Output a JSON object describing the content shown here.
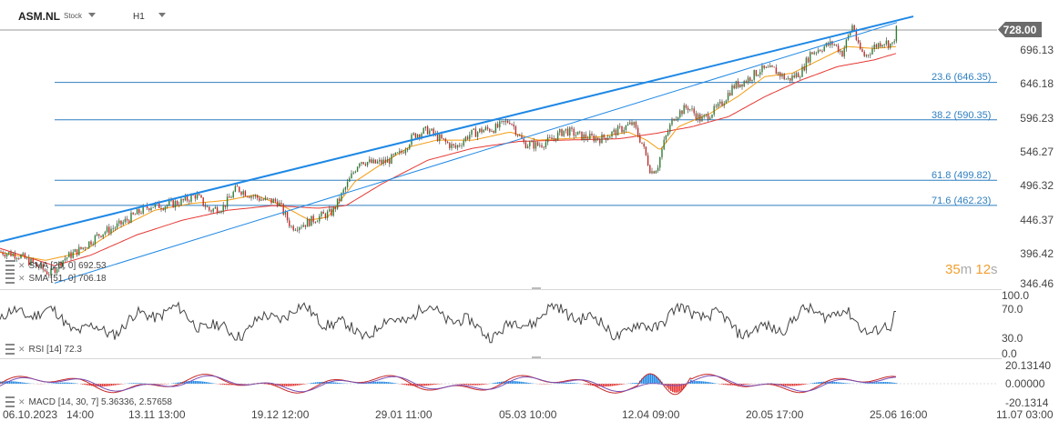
{
  "header": {
    "symbol": "ASM.NL",
    "symbol_type": "Stock",
    "timeframe": "H1"
  },
  "price_axis": [
    "696.13",
    "646.18",
    "596.23",
    "546.27",
    "496.32",
    "446.37",
    "396.42",
    "346.46"
  ],
  "current_price": "728.00",
  "fib_levels": [
    "23.6 (646.35)",
    "38.2 (590.35)",
    "61.8 (499.82)",
    "71.6 (462.23)"
  ],
  "indicators": {
    "sma1": "SMA [20, 0] 692.53",
    "sma2": "SMA [51, 0] 706.18",
    "rsi": "RSI [14] 72.3",
    "macd": "MACD [14, 30, 7] 5.36336, 2.57658"
  },
  "rsi_axis": [
    "100.0",
    "70.0",
    "30.0",
    "0.0"
  ],
  "macd_axis": [
    "20.13140",
    "0.00000",
    "-20.1314"
  ],
  "x_axis": [
    "06.10.2023",
    "14:00",
    "13.11 13:00",
    "19.12 12:00",
    "29.01 11:00",
    "05.03 10:00",
    "12.04 09:00",
    "20.05 17:00",
    "25.06 16:00",
    "11.07 03:00"
  ],
  "countdown": {
    "minutes": "35",
    "m": "m",
    "seconds": "12",
    "s": "s"
  },
  "colors": {
    "fib": "#2f7fc1",
    "trend": "#1e88e5",
    "sma_fast": "#f39c12",
    "sma_slow": "#e53935",
    "price": "#222222",
    "macd_pos": "#1e88e5",
    "macd_neg": "#e53935"
  },
  "chart_data": {
    "type": "line",
    "title": "ASM.NL H1",
    "ylim": [
      346.46,
      746
    ],
    "close_anchors": [
      [
        0,
        393
      ],
      [
        20,
        388
      ],
      [
        40,
        372
      ],
      [
        55,
        360
      ],
      [
        70,
        382
      ],
      [
        90,
        398
      ],
      [
        110,
        420
      ],
      [
        130,
        432
      ],
      [
        150,
        450
      ],
      [
        165,
        462
      ],
      [
        180,
        462
      ],
      [
        200,
        468
      ],
      [
        215,
        478
      ],
      [
        230,
        455
      ],
      [
        245,
        460
      ],
      [
        260,
        488
      ],
      [
        275,
        478
      ],
      [
        290,
        470
      ],
      [
        305,
        468
      ],
      [
        320,
        430
      ],
      [
        335,
        435
      ],
      [
        350,
        445
      ],
      [
        365,
        452
      ],
      [
        380,
        490
      ],
      [
        395,
        530
      ],
      [
        410,
        525
      ],
      [
        425,
        528
      ],
      [
        440,
        540
      ],
      [
        455,
        568
      ],
      [
        470,
        575
      ],
      [
        485,
        560
      ],
      [
        500,
        548
      ],
      [
        515,
        568
      ],
      [
        530,
        575
      ],
      [
        545,
        578
      ],
      [
        560,
        590
      ],
      [
        575,
        555
      ],
      [
        590,
        552
      ],
      [
        605,
        560
      ],
      [
        620,
        575
      ],
      [
        640,
        565
      ],
      [
        660,
        562
      ],
      [
        680,
        575
      ],
      [
        695,
        585
      ],
      [
        705,
        555
      ],
      [
        715,
        512
      ],
      [
        722,
        520
      ],
      [
        730,
        560
      ],
      [
        740,
        595
      ],
      [
        755,
        610
      ],
      [
        770,
        590
      ],
      [
        790,
        610
      ],
      [
        805,
        640
      ],
      [
        820,
        650
      ],
      [
        835,
        665
      ],
      [
        850,
        665
      ],
      [
        865,
        650
      ],
      [
        880,
        662
      ],
      [
        890,
        690
      ],
      [
        905,
        700
      ],
      [
        915,
        705
      ],
      [
        925,
        690
      ],
      [
        937,
        735
      ],
      [
        942,
        700
      ],
      [
        950,
        685
      ],
      [
        960,
        700
      ],
      [
        970,
        708
      ],
      [
        980,
        702
      ],
      [
        985,
        728
      ]
    ],
    "sma_fast_anchors": [
      [
        0,
        392
      ],
      [
        50,
        380
      ],
      [
        90,
        392
      ],
      [
        130,
        428
      ],
      [
        170,
        455
      ],
      [
        210,
        465
      ],
      [
        250,
        470
      ],
      [
        280,
        478
      ],
      [
        310,
        462
      ],
      [
        340,
        440
      ],
      [
        360,
        445
      ],
      [
        390,
        498
      ],
      [
        420,
        525
      ],
      [
        450,
        550
      ],
      [
        480,
        560
      ],
      [
        520,
        560
      ],
      [
        560,
        572
      ],
      [
        590,
        560
      ],
      [
        620,
        562
      ],
      [
        660,
        565
      ],
      [
        690,
        572
      ],
      [
        710,
        560
      ],
      [
        725,
        545
      ],
      [
        745,
        580
      ],
      [
        780,
        600
      ],
      [
        810,
        625
      ],
      [
        840,
        655
      ],
      [
        870,
        660
      ],
      [
        900,
        680
      ],
      [
        930,
        700
      ],
      [
        960,
        697
      ],
      [
        985,
        700
      ]
    ],
    "sma_slow_anchors": [
      [
        0,
        398
      ],
      [
        60,
        372
      ],
      [
        100,
        388
      ],
      [
        150,
        418
      ],
      [
        200,
        440
      ],
      [
        250,
        455
      ],
      [
        300,
        462
      ],
      [
        350,
        458
      ],
      [
        380,
        462
      ],
      [
        420,
        495
      ],
      [
        470,
        530
      ],
      [
        520,
        548
      ],
      [
        570,
        558
      ],
      [
        620,
        560
      ],
      [
        680,
        562
      ],
      [
        720,
        570
      ],
      [
        760,
        580
      ],
      [
        800,
        595
      ],
      [
        840,
        625
      ],
      [
        880,
        650
      ],
      [
        920,
        670
      ],
      [
        960,
        680
      ],
      [
        985,
        690
      ]
    ],
    "trend_lines": [
      {
        "from": [
          0,
          408
        ],
        "to": [
          1003,
          745
        ]
      },
      {
        "from": [
          60,
          346
        ],
        "to": [
          985,
          736
        ]
      }
    ],
    "fib_values": [
      646.35,
      590.35,
      499.82,
      462.23
    ],
    "rsi_range": [
      0,
      100
    ],
    "macd_range": [
      -20.1314,
      20.1314
    ]
  }
}
